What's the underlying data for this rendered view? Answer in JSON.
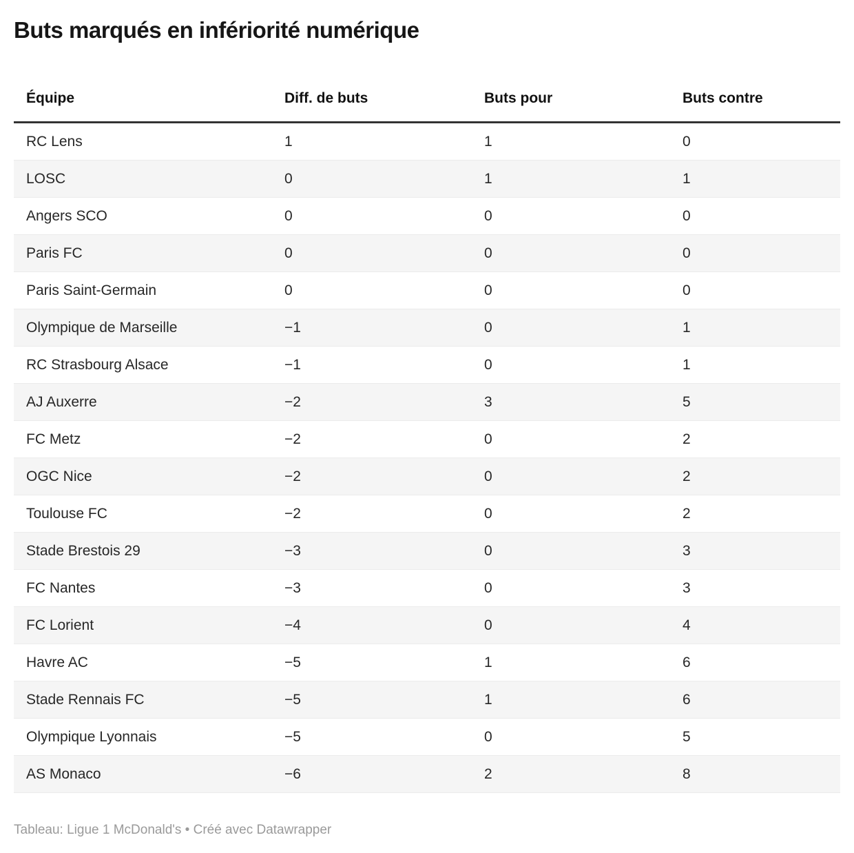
{
  "chart_data": {
    "type": "table",
    "title": "Buts marqués en infériorité numérique",
    "columns": [
      "Équipe",
      "Diff. de buts",
      "Buts pour",
      "Buts contre"
    ],
    "rows": [
      [
        "RC Lens",
        "1",
        "1",
        "0"
      ],
      [
        "LOSC",
        "0",
        "1",
        "1"
      ],
      [
        "Angers SCO",
        "0",
        "0",
        "0"
      ],
      [
        "Paris FC",
        "0",
        "0",
        "0"
      ],
      [
        "Paris Saint-Germain",
        "0",
        "0",
        "0"
      ],
      [
        "Olympique de Marseille",
        "−1",
        "0",
        "1"
      ],
      [
        "RC Strasbourg Alsace",
        "−1",
        "0",
        "1"
      ],
      [
        "AJ Auxerre",
        "−2",
        "3",
        "5"
      ],
      [
        "FC Metz",
        "−2",
        "0",
        "2"
      ],
      [
        "OGC Nice",
        "−2",
        "0",
        "2"
      ],
      [
        "Toulouse FC",
        "−2",
        "0",
        "2"
      ],
      [
        "Stade Brestois 29",
        "−3",
        "0",
        "3"
      ],
      [
        "FC Nantes",
        "−3",
        "0",
        "3"
      ],
      [
        "FC Lorient",
        "−4",
        "0",
        "4"
      ],
      [
        "Havre AC",
        "−5",
        "1",
        "6"
      ],
      [
        "Stade Rennais FC",
        "−5",
        "1",
        "6"
      ],
      [
        "Olympique Lyonnais",
        "−5",
        "0",
        "5"
      ],
      [
        "AS Monaco",
        "−6",
        "2",
        "8"
      ]
    ],
    "footer": "Tableau: Ligue 1 McDonald's • Créé avec Datawrapper",
    "layout": {
      "stripe_color": "#f5f5f5",
      "row_border_color": "#ebebeb",
      "header_rule_color": "#333333",
      "footer_text_color": "#9a9a9a",
      "legend_position": "none",
      "grid": "row-borders"
    }
  }
}
